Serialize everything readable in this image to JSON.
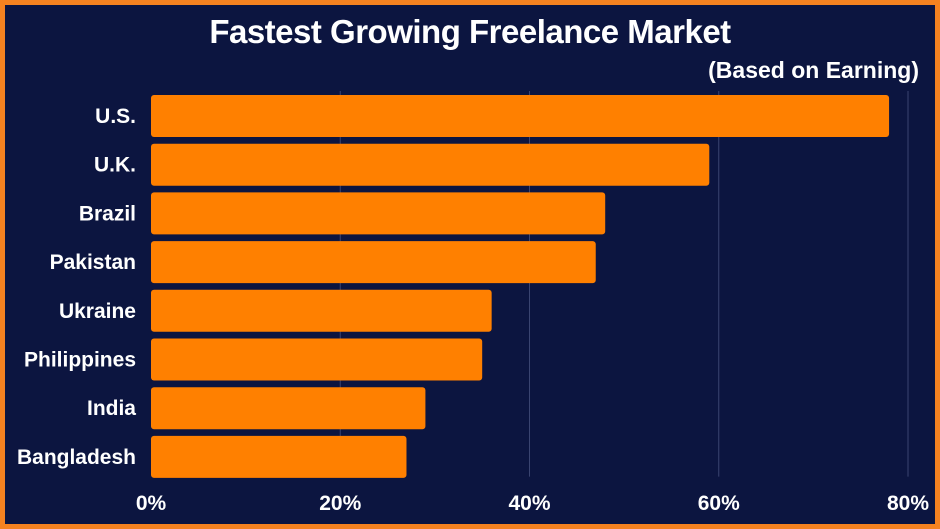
{
  "chart_data": {
    "type": "bar",
    "orientation": "horizontal",
    "title": "Fastest Growing Freelance Market",
    "subtitle": "(Based on Earning)",
    "categories": [
      "U.S.",
      "U.K.",
      "Brazil",
      "Pakistan",
      "Ukraine",
      "Philippines",
      "India",
      "Bangladesh"
    ],
    "values": [
      78,
      59,
      48,
      47,
      36,
      35,
      29,
      27
    ],
    "xlim": [
      0,
      80
    ],
    "xticks": [
      "0%",
      "20%",
      "40%",
      "60%",
      "80%"
    ],
    "grid": true,
    "legend": "none",
    "bar_color": "#ff8000",
    "background_color": "#0c1540",
    "border_color": "#f58220"
  }
}
